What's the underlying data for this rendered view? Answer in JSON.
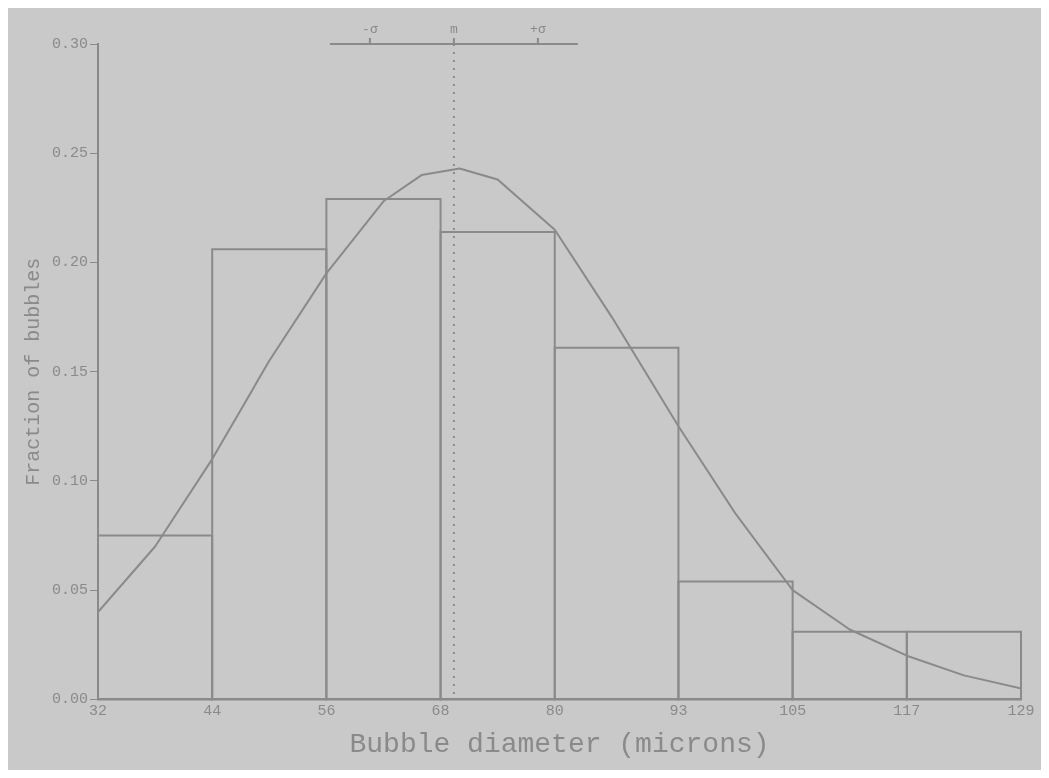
{
  "chart_data": {
    "type": "histogram",
    "xlabel": "Bubble diameter (microns)",
    "ylabel": "Fraction of bubbles",
    "bins": [
      32,
      44,
      56,
      68,
      80,
      93,
      105,
      117,
      129
    ],
    "series": [
      {
        "color": "#8a8a8a",
        "values": [
          0.075,
          0.206,
          0.229,
          0.214,
          0.161,
          0.054,
          0.031,
          0.031
        ]
      },
      {
        "type": "line",
        "color": "#8a8a8a",
        "x": [
          32,
          38,
          44,
          50,
          56,
          62,
          66,
          70,
          74,
          80,
          86,
          93,
          99,
          105,
          111,
          117,
          123,
          129
        ],
        "values": [
          0.04,
          0.07,
          0.11,
          0.155,
          0.195,
          0.228,
          0.24,
          0.243,
          0.238,
          0.215,
          0.175,
          0.125,
          0.085,
          0.05,
          0.032,
          0.02,
          0.011,
          0.005
        ]
      }
    ],
    "xlim": [
      32,
      129
    ],
    "xticks": [
      32,
      44,
      56,
      68,
      80,
      93,
      105,
      117,
      129
    ],
    "ylim": [
      0,
      0.3
    ],
    "yticks": [
      {
        "value": 0,
        "label": "0.00"
      },
      {
        "value": 0.05,
        "label": "0.05"
      },
      {
        "value": 0.1,
        "label": "0.10"
      },
      {
        "value": 0.15,
        "label": "0.15"
      },
      {
        "value": 0.2,
        "label": "0.20"
      },
      {
        "value": 0.25,
        "label": "0.25"
      },
      {
        "value": 0.3,
        "label": "0.30"
      }
    ],
    "annotations": [
      "-σ",
      "+σ"
    ],
    "ref_lines": [
      {
        "axis": "x",
        "value": 69.4,
        "label": "m",
        "line_style": "dotted",
        "color": "#8a8a8a"
      }
    ],
    "grid": false,
    "legend": false,
    "marker": "none"
  }
}
